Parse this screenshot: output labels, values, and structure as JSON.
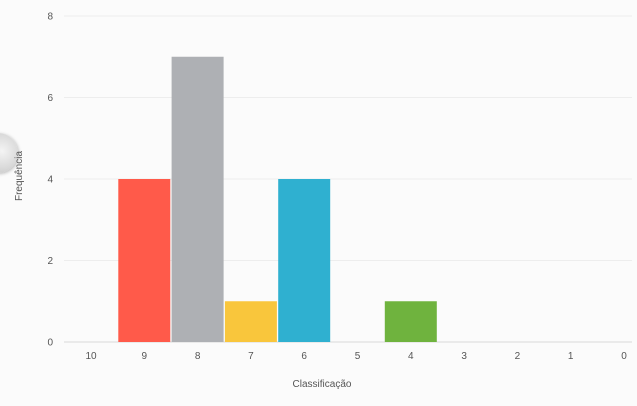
{
  "chart_data": {
    "type": "bar",
    "title": "",
    "xlabel": "Classificação",
    "ylabel": "Frequência",
    "categories": [
      "10",
      "9",
      "8",
      "7",
      "6",
      "5",
      "4",
      "3",
      "2",
      "1",
      "0"
    ],
    "values": [
      0,
      4,
      7,
      1,
      4,
      0,
      1,
      0,
      0,
      0,
      0
    ],
    "colors": [
      "#ff5a4a",
      "#ff5a4a",
      "#aeb0b4",
      "#f9c63c",
      "#2fb0d0",
      "#8bc34a",
      "#6fb33e",
      "#6fb33e",
      "#6fb33e",
      "#6fb33e",
      "#6fb33e"
    ],
    "ylim": [
      0,
      8
    ],
    "yticks": [
      0,
      2,
      4,
      6,
      8
    ],
    "grid": true,
    "legend": "none"
  }
}
